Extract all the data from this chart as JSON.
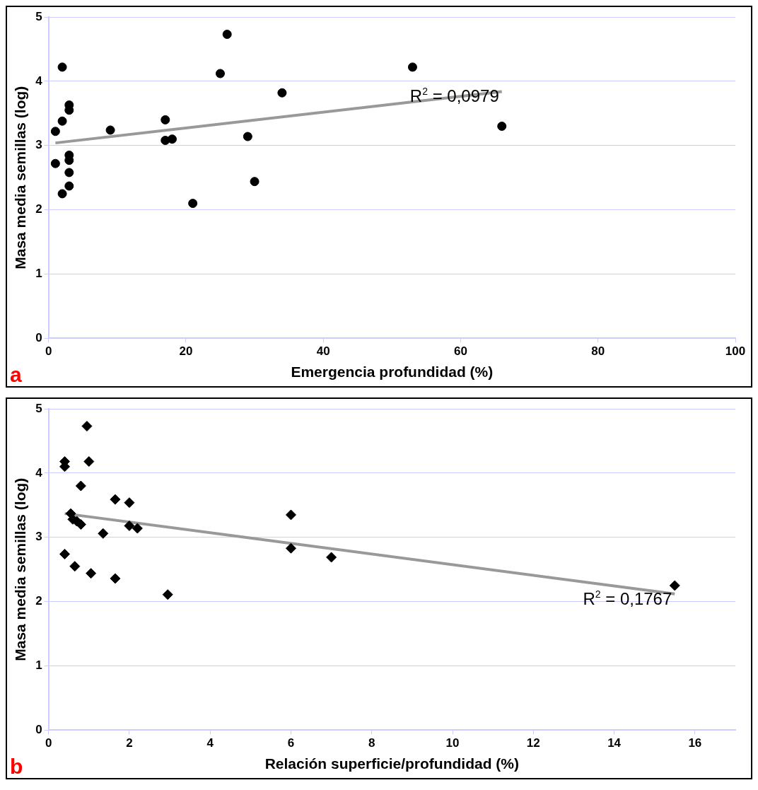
{
  "chart_data": [
    {
      "type": "scatter",
      "xlabel": "Emergencia profundidad (%)",
      "ylabel": "Masa media semillas (log)",
      "xlim": [
        0,
        100
      ],
      "xticks": [
        0,
        20,
        40,
        60,
        80,
        100
      ],
      "ylim": [
        0,
        5
      ],
      "yticks": [
        0,
        1,
        2,
        3,
        4,
        5
      ],
      "grid": "y",
      "legend": false,
      "annotations": [
        "R$^{2}$ = 0,0979",
        "a"
      ],
      "series": [
        {
          "type": "scatter",
          "color": "#000000",
          "marker": "circle",
          "x": [
            1,
            1,
            2,
            2,
            2,
            3,
            3,
            3,
            3,
            3,
            3,
            9,
            17,
            17,
            18,
            21,
            25,
            26,
            29,
            30,
            34,
            53,
            66
          ],
          "values": [
            3.22,
            2.72,
            4.22,
            3.38,
            2.25,
            3.63,
            3.55,
            2.85,
            2.77,
            2.58,
            2.37,
            3.24,
            3.4,
            3.08,
            3.1,
            2.1,
            4.12,
            4.73,
            3.14,
            2.44,
            3.82,
            4.22,
            3.3
          ]
        },
        {
          "type": "line",
          "color": "#999999",
          "marker": "none",
          "x": [
            1,
            66
          ],
          "values": [
            3.04,
            3.84
          ]
        }
      ]
    },
    {
      "type": "scatter",
      "xlabel": "Relación superficie/profundidad (%)",
      "ylabel": "Masa media semillas (log)",
      "xlim": [
        0,
        17
      ],
      "xticks": [
        0,
        2,
        4,
        6,
        8,
        10,
        12,
        14,
        16
      ],
      "ylim": [
        0,
        5
      ],
      "yticks": [
        0,
        1,
        2,
        3,
        4,
        5
      ],
      "grid": "y",
      "legend": false,
      "annotations": [
        "R$^{2}$ = 0,1767",
        "b"
      ],
      "series": [
        {
          "type": "scatter",
          "color": "#000000",
          "marker": "diamond",
          "x": [
            0.4,
            0.4,
            0.4,
            0.55,
            0.6,
            0.7,
            0.8,
            0.8,
            0.65,
            0.95,
            1.0,
            1.05,
            1.3,
            1.35,
            1.65,
            1.65,
            2.0,
            2.0,
            2.2,
            2.95,
            6,
            6,
            7,
            15.5
          ],
          "values": [
            4.18,
            4.1,
            2.74,
            3.37,
            3.28,
            3.25,
            3.2,
            3.8,
            2.55,
            4.73,
            4.18,
            2.44,
            null,
            3.06,
            3.59,
            2.36,
            3.54,
            3.18,
            3.14,
            2.11,
            3.35,
            2.83,
            2.69,
            2.25
          ]
        },
        {
          "type": "line",
          "color": "#999999",
          "marker": "none",
          "x": [
            0.4,
            15.5
          ],
          "values": [
            3.37,
            2.12
          ]
        }
      ]
    }
  ]
}
